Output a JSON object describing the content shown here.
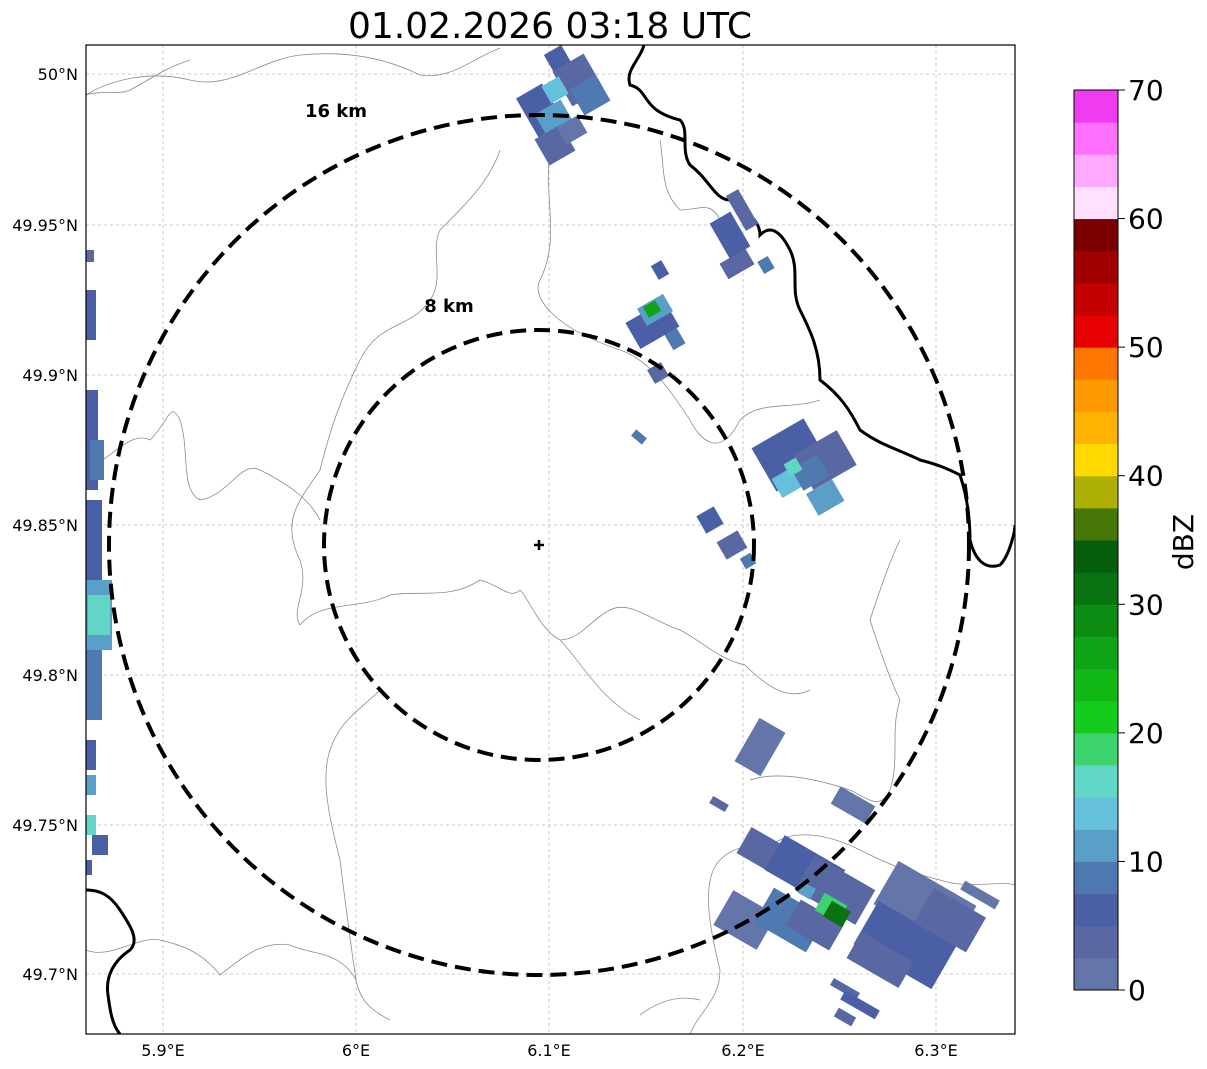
{
  "title": "01.02.2026 03:18 UTC",
  "axes": {
    "x_ticks": [
      "5.9°E",
      "6°E",
      "6.1°E",
      "6.2°E",
      "6.3°E"
    ],
    "y_ticks": [
      "50°N",
      "49.95°N",
      "49.9°N",
      "49.85°N",
      "49.8°N",
      "49.75°N",
      "49.7°N"
    ]
  },
  "rings": {
    "inner_label": "8 km",
    "outer_label": "16 km"
  },
  "radar_site": {
    "lon": 6.095,
    "lat": 49.843
  },
  "colorbar": {
    "label": "dBZ",
    "ticks": [
      "0",
      "10",
      "20",
      "30",
      "40",
      "50",
      "60",
      "70"
    ],
    "range": [
      0,
      70
    ],
    "colors": [
      "#6476a9",
      "#5968a3",
      "#4a5fa6",
      "#4f79b1",
      "#5a9fc7",
      "#65c0dc",
      "#62d6c4",
      "#3dd470",
      "#14cc1e",
      "#11b715",
      "#0fa415",
      "#0d8c14",
      "#0a7311",
      "#055e0c",
      "#477707",
      "#aeb005",
      "#ffd900",
      "#ffb300",
      "#ff9900",
      "#ff7700",
      "#e60000",
      "#c40000",
      "#a00000",
      "#7a0000",
      "#ffe0ff",
      "#ffaaff",
      "#ff70ff",
      "#f03cf0"
    ]
  }
}
